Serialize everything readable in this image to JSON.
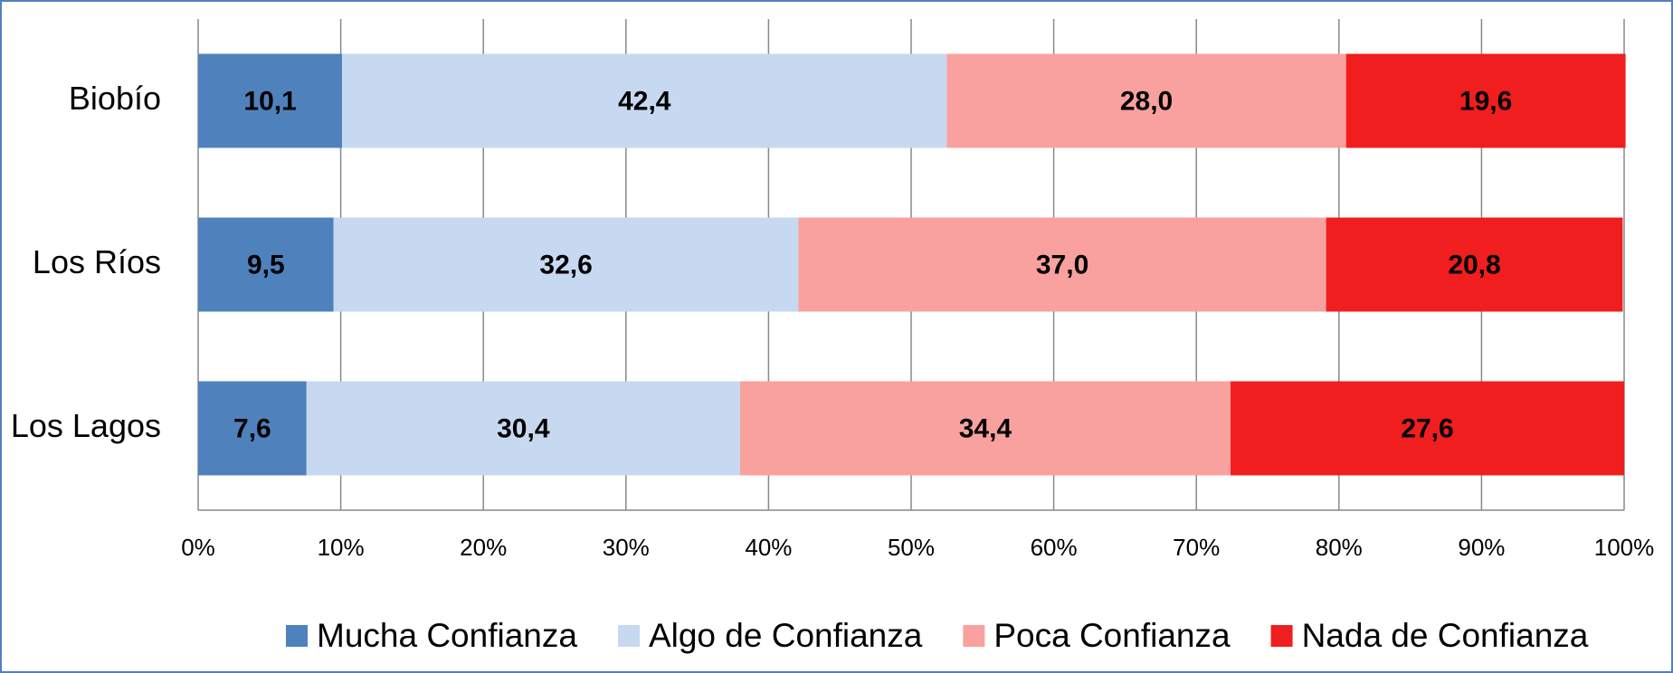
{
  "chart_data": {
    "type": "stacked_barh",
    "categories": [
      "Biobío",
      "Los Ríos",
      "Los Lagos"
    ],
    "series": [
      {
        "name": "Mucha Confianza",
        "color": "#4f81bd",
        "values": [
          10.1,
          9.5,
          7.6
        ],
        "value_labels": [
          "10,1",
          "9,5",
          "7,6"
        ]
      },
      {
        "name": "Algo de Confianza",
        "color": "#c6d9f1",
        "values": [
          42.4,
          32.6,
          30.4
        ],
        "value_labels": [
          "42,4",
          "32,6",
          "30,4"
        ]
      },
      {
        "name": "Poca Confianza",
        "color": "#f9a19e",
        "values": [
          28.0,
          37.0,
          34.4
        ],
        "value_labels": [
          "28,0",
          "37,0",
          "34,4"
        ]
      },
      {
        "name": "Nada de Confianza",
        "color": "#f01e1e",
        "values": [
          19.6,
          20.8,
          27.6
        ],
        "value_labels": [
          "19,6",
          "20,8",
          "27,6"
        ]
      }
    ],
    "xlim": [
      0,
      100
    ],
    "xticks": [
      {
        "value": 0,
        "label": "0%"
      },
      {
        "value": 10,
        "label": "10%"
      },
      {
        "value": 20,
        "label": "20%"
      },
      {
        "value": 30,
        "label": "30%"
      },
      {
        "value": 40,
        "label": "40%"
      },
      {
        "value": 50,
        "label": "50%"
      },
      {
        "value": 60,
        "label": "60%"
      },
      {
        "value": 70,
        "label": "70%"
      },
      {
        "value": 80,
        "label": "80%"
      },
      {
        "value": 90,
        "label": "90%"
      },
      {
        "value": 100,
        "label": "100%"
      }
    ],
    "grid": true,
    "legend": "bottom"
  }
}
